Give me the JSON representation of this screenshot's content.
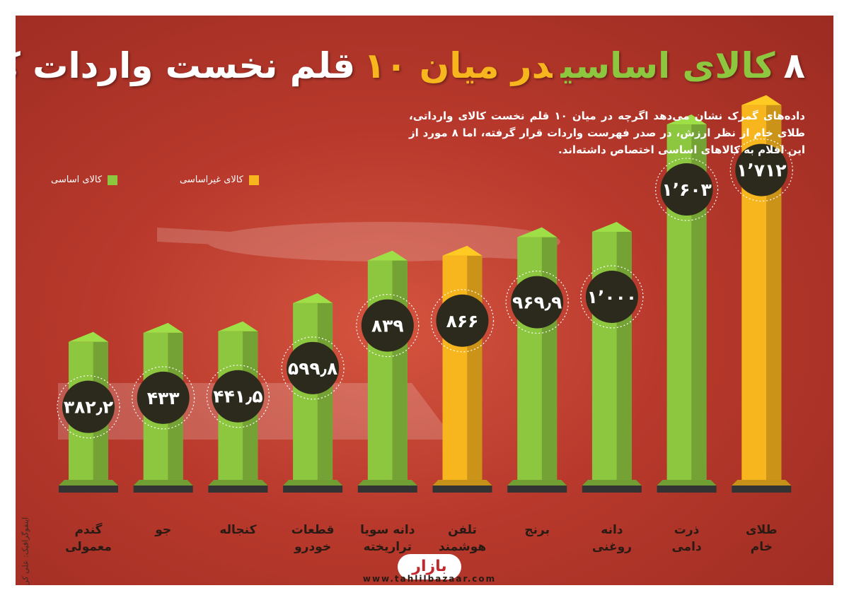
{
  "chart_data": {
    "type": "bar",
    "title": [
      "۸",
      "کالای اساسی",
      "در میان ۱۰",
      "قلم نخست واردات کشور"
    ],
    "subtitle": "داده‌های گمرک نشان می‌دهد اگرچه در میان ۱۰ قلم نخست کالای وارداتی، طلای خام از نظر ارزش، در صدر فهرست واردات قرار گرفته، اما ۸ مورد از این اقلام به کالاهای اساسی اختصاص داشته‌اند.",
    "categories": [
      "گندم\nمعمولی",
      "جو",
      "کنجاله",
      "قطعات\nخودرو",
      "دانه سویا\nتراریخته",
      "تلفن\nهوشمند",
      "برنج",
      "دانه\nروغنی",
      "ذرت\nدامی",
      "طلای\nخام"
    ],
    "values": [
      382.2,
      433,
      441.5,
      599.8,
      839,
      866,
      969.9,
      1000,
      1603,
      1712
    ],
    "value_labels": [
      "۳۸۲٫۲",
      "۴۳۳",
      "۴۴۱٫۵",
      "۵۹۹٫۸",
      "۸۳۹",
      "۸۶۶",
      "۹۶۹٫۹",
      "۱٬۰۰۰",
      "۱٬۶۰۳",
      "۱٬۷۱۲"
    ],
    "colors": [
      "#8dc63f",
      "#8dc63f",
      "#8dc63f",
      "#8dc63f",
      "#8dc63f",
      "#f7b51e",
      "#8dc63f",
      "#8dc63f",
      "#8dc63f",
      "#f7b51e"
    ],
    "legend": [
      {
        "name": "کالای اساسی",
        "color": "#8dc63f"
      },
      {
        "name": "کالای غیراساسی",
        "color": "#f7b51e"
      }
    ]
  },
  "credit": "اینفوگرافیک: علی کریمی",
  "logo": "بازار",
  "website": "www.tahlilbazaar.com"
}
